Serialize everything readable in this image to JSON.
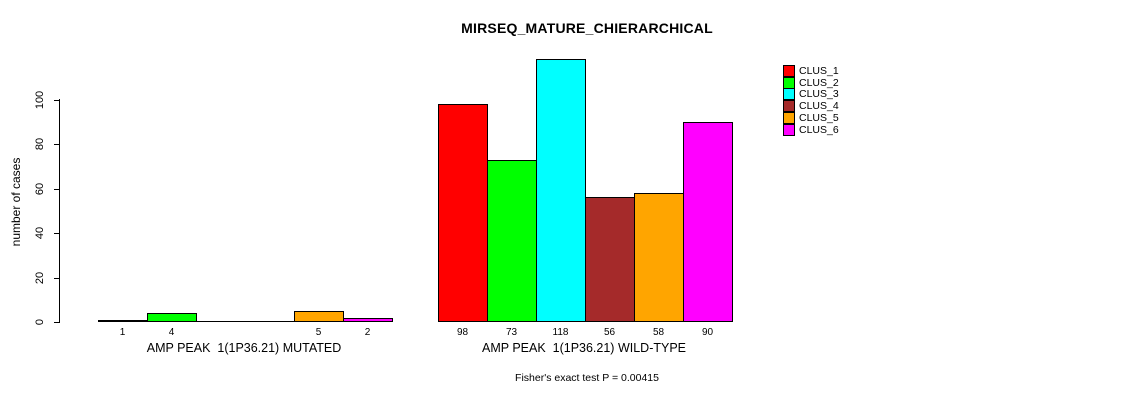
{
  "chart_data": {
    "type": "bar",
    "title": "MIRSEQ_MATURE_CHIERARCHICAL",
    "ylabel": "number of cases",
    "yticks": [
      0,
      20,
      40,
      60,
      80,
      100
    ],
    "ylim": [
      0,
      118
    ],
    "grid": false,
    "legend_position": "top-right",
    "categories": [
      "CLUS_1",
      "CLUS_2",
      "CLUS_3",
      "CLUS_4",
      "CLUS_5",
      "CLUS_6"
    ],
    "colors": [
      "#ff0000",
      "#00ff00",
      "#00ffff",
      "#a52a2a",
      "#ffa500",
      "#ff00ff"
    ],
    "groups": [
      {
        "label": "AMP PEAK  1(1P36.21) MUTATED",
        "values": [
          1,
          4,
          0,
          0,
          5,
          2
        ]
      },
      {
        "label": "AMP PEAK  1(1P36.21) WILD-TYPE",
        "values": [
          98,
          73,
          118,
          56,
          58,
          90
        ]
      }
    ],
    "annotation": "Fisher's exact test P = 0.00415"
  }
}
